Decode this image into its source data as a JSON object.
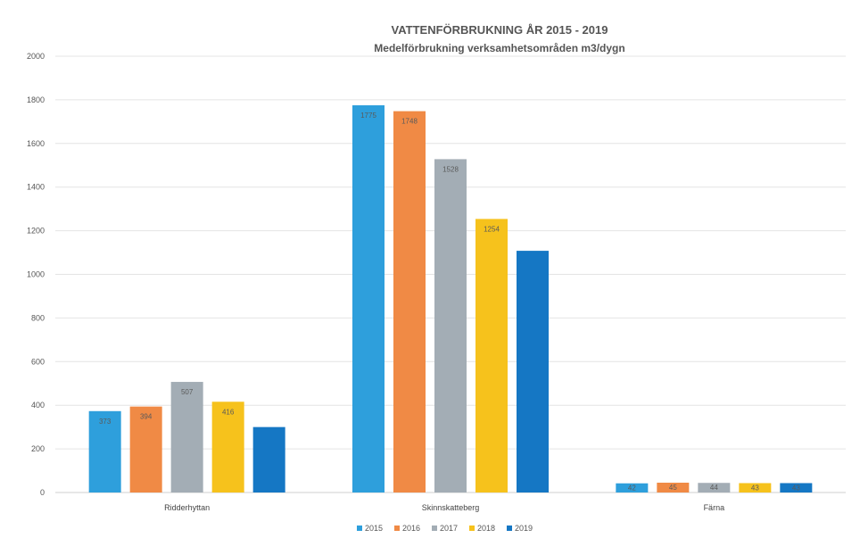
{
  "chart_data": {
    "type": "bar",
    "title": "VATTENFÖRBRUKNING ÅR 2015 - 2019",
    "subtitle": "Medelförbrukning verksamhetsområden m3/dygn",
    "categories": [
      "Ridderhyttan",
      "Skinnskatteberg",
      "Färna"
    ],
    "series": [
      {
        "name": "2015",
        "color": "#2e9fdc",
        "values": [
          373,
          1775,
          42
        ],
        "labels": [
          "373",
          "1775",
          "42"
        ]
      },
      {
        "name": "2016",
        "color": "#f08a45",
        "values": [
          394,
          1748,
          45
        ],
        "labels": [
          "394",
          "1748",
          "45"
        ]
      },
      {
        "name": "2017",
        "color": "#a3adb5",
        "values": [
          507,
          1528,
          44
        ],
        "labels": [
          "507",
          "1528",
          "44"
        ]
      },
      {
        "name": "2018",
        "color": "#f6c21c",
        "values": [
          416,
          1254,
          43
        ],
        "labels": [
          "416",
          "1254",
          "43"
        ]
      },
      {
        "name": "2019",
        "color": "#1577c4",
        "values": [
          300,
          1108,
          43
        ],
        "labels": [
          "",
          "",
          "43"
        ]
      }
    ],
    "ylim": [
      0,
      2000
    ],
    "yticks": [
      "0",
      "200",
      "400",
      "600",
      "800",
      "1000",
      "1200",
      "1400",
      "1600",
      "1800",
      "2000"
    ],
    "grid": true,
    "legend_position": "bottom"
  }
}
